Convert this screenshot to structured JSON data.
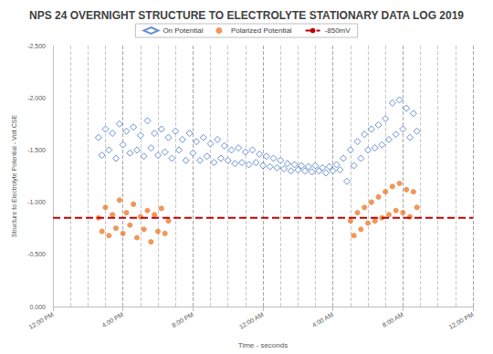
{
  "chart_data": {
    "type": "scatter",
    "title": "NPS 24 OVERNIGHT STRUCTURE TO ELECTROLYTE STATIONARY DATA LOG 2019",
    "x_label": "Time - seconds",
    "y_label": "Structure to Electrolyte Potential - Volt CSE",
    "xlim": [
      0,
      24
    ],
    "xticks": [
      {
        "value": 0,
        "label": "12:00 PM"
      },
      {
        "value": 4,
        "label": "4:00 PM"
      },
      {
        "value": 8,
        "label": "8:00 PM"
      },
      {
        "value": 12,
        "label": "12:00 AM"
      },
      {
        "value": 16,
        "label": "4:00 AM"
      },
      {
        "value": 20,
        "label": "8:00 AM"
      },
      {
        "value": 24,
        "label": "12:00 PM"
      }
    ],
    "ylim": [
      0,
      -2.5
    ],
    "yticks": [
      {
        "value": -2.5,
        "label": "-2.500"
      },
      {
        "value": -2.0,
        "label": "-2.000"
      },
      {
        "value": -1.5,
        "label": "-1.500"
      },
      {
        "value": -1.0,
        "label": "-1.000"
      },
      {
        "value": -0.5,
        "label": "-0.500"
      },
      {
        "value": 0,
        "label": "0.000"
      }
    ],
    "grid": true,
    "legend": "top",
    "series": [
      {
        "name": "On Potential",
        "type": "scatter",
        "color": "#4472c4",
        "marker": "diamond",
        "x": [
          2.6,
          2.8,
          3.0,
          3.2,
          3.4,
          3.6,
          3.8,
          4.0,
          4.2,
          4.4,
          4.6,
          4.8,
          5.0,
          5.2,
          5.4,
          5.6,
          5.8,
          6.0,
          6.2,
          6.4,
          6.6,
          6.8,
          7.0,
          7.2,
          7.4,
          7.6,
          7.8,
          8.0,
          8.2,
          8.4,
          8.6,
          8.8,
          9.0,
          9.2,
          9.4,
          9.6,
          9.8,
          10.0,
          10.2,
          10.4,
          10.6,
          10.8,
          11.0,
          11.2,
          11.4,
          11.6,
          11.8,
          12.0,
          12.2,
          12.4,
          12.6,
          12.8,
          13.0,
          13.2,
          13.4,
          13.6,
          13.8,
          14.0,
          14.2,
          14.4,
          14.6,
          14.8,
          15.0,
          15.2,
          15.4,
          15.6,
          15.8,
          16.0,
          16.2,
          16.4,
          16.6,
          16.8,
          17.0,
          17.2,
          17.4,
          17.6,
          17.8,
          18.0,
          18.2,
          18.4,
          18.6,
          18.8,
          19.0,
          19.2,
          19.4,
          19.6,
          19.8,
          20.0,
          20.2,
          20.4,
          20.6,
          20.8
        ],
        "values": [
          -1.62,
          -1.45,
          -1.7,
          -1.5,
          -1.66,
          -1.42,
          -1.75,
          -1.55,
          -1.68,
          -1.47,
          -1.72,
          -1.5,
          -1.64,
          -1.44,
          -1.78,
          -1.52,
          -1.66,
          -1.45,
          -1.7,
          -1.48,
          -1.62,
          -1.42,
          -1.68,
          -1.5,
          -1.6,
          -1.4,
          -1.66,
          -1.47,
          -1.58,
          -1.4,
          -1.62,
          -1.44,
          -1.56,
          -1.38,
          -1.6,
          -1.42,
          -1.54,
          -1.4,
          -1.5,
          -1.37,
          -1.52,
          -1.38,
          -1.48,
          -1.36,
          -1.5,
          -1.38,
          -1.46,
          -1.35,
          -1.44,
          -1.34,
          -1.42,
          -1.33,
          -1.4,
          -1.32,
          -1.37,
          -1.3,
          -1.36,
          -1.31,
          -1.35,
          -1.3,
          -1.34,
          -1.29,
          -1.35,
          -1.3,
          -1.33,
          -1.28,
          -1.34,
          -1.3,
          -1.36,
          -1.31,
          -1.42,
          -1.2,
          -1.5,
          -1.35,
          -1.58,
          -1.42,
          -1.65,
          -1.5,
          -1.7,
          -1.52,
          -1.74,
          -1.55,
          -1.8,
          -1.6,
          -1.95,
          -1.65,
          -1.98,
          -1.7,
          -1.9,
          -1.62,
          -1.85,
          -1.68
        ]
      },
      {
        "name": "Polarized Potential",
        "type": "scatter",
        "color": "#ed7d31",
        "marker": "circle",
        "x": [
          2.6,
          2.8,
          3.0,
          3.2,
          3.4,
          3.6,
          3.8,
          4.0,
          4.2,
          4.4,
          4.6,
          4.8,
          5.0,
          5.2,
          5.4,
          5.6,
          5.8,
          6.0,
          6.2,
          6.4,
          6.6,
          17.0,
          17.2,
          17.4,
          17.6,
          17.8,
          18.0,
          18.2,
          18.4,
          18.6,
          18.8,
          19.0,
          19.2,
          19.4,
          19.6,
          19.8,
          20.0,
          20.2,
          20.4,
          20.6,
          20.8
        ],
        "values": [
          -0.85,
          -0.72,
          -0.95,
          -0.68,
          -0.88,
          -0.75,
          -1.02,
          -0.7,
          -0.9,
          -0.78,
          -0.98,
          -0.66,
          -0.86,
          -0.74,
          -0.92,
          -0.62,
          -0.88,
          -0.72,
          -0.94,
          -0.7,
          -0.82,
          -0.82,
          -0.68,
          -0.9,
          -0.74,
          -0.95,
          -0.8,
          -1.0,
          -0.82,
          -1.05,
          -0.85,
          -1.1,
          -0.88,
          -1.15,
          -0.92,
          -1.18,
          -0.9,
          -1.12,
          -0.86,
          -1.1,
          -0.95
        ]
      },
      {
        "name": "-850mV",
        "type": "line",
        "color": "#c00000",
        "line_style": "dashed",
        "x": [
          0,
          24
        ],
        "values": [
          -0.85,
          -0.85
        ]
      }
    ]
  }
}
